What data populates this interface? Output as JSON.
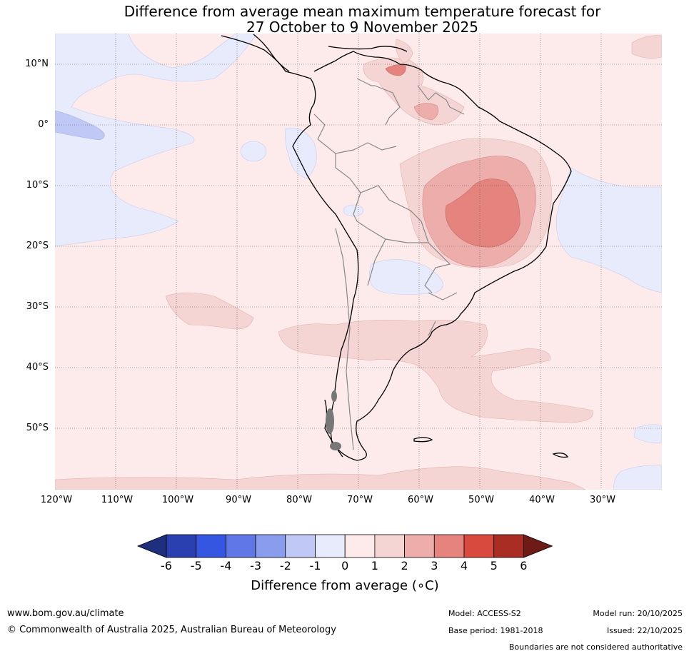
{
  "title": {
    "line1": "Difference from average mean maximum temperature forecast for",
    "line2": "27 October to 9 November 2025"
  },
  "map": {
    "region": "South America",
    "lat_labels": [
      "10°N",
      "0°",
      "10°S",
      "20°S",
      "30°S",
      "40°S",
      "50°S"
    ],
    "lat_values": [
      10,
      0,
      -10,
      -20,
      -30,
      -40,
      -50
    ],
    "lon_labels": [
      "120°W",
      "110°W",
      "100°W",
      "90°W",
      "80°W",
      "70°W",
      "60°W",
      "50°W",
      "40°W",
      "30°W"
    ],
    "lon_values": [
      -120,
      -110,
      -100,
      -90,
      -80,
      -70,
      -60,
      -50,
      -40,
      -30
    ],
    "extent": {
      "lon_min": -120,
      "lon_max": -20,
      "lat_min": -60,
      "lat_max": 15
    },
    "anomaly_regions": [
      {
        "name": "central-brazil-warm-core",
        "anomaly_range": "3 to 4"
      },
      {
        "name": "central-brazil-warm-ring",
        "anomaly_range": "2 to 3"
      },
      {
        "name": "venezuela-warm",
        "anomaly_range": "1 to 3"
      },
      {
        "name": "south-atlantic-warm",
        "anomaly_range": "1 to 2"
      },
      {
        "name": "eastern-pacific-cool",
        "anomaly_range": "-2 to -1"
      },
      {
        "name": "background",
        "anomaly_range": "0 to 1"
      }
    ]
  },
  "colorbar": {
    "ticks": [
      "-6",
      "-5",
      "-4",
      "-3",
      "-2",
      "-1",
      "0",
      "1",
      "2",
      "3",
      "4",
      "5",
      "6"
    ],
    "colors": [
      "#1f2f7d",
      "#2a40b0",
      "#3456e0",
      "#5f78e5",
      "#8a9ced",
      "#c0c8f5",
      "#e8ebfb",
      "#fcebea",
      "#f5d5d3",
      "#edaeab",
      "#e5847f",
      "#d94a3e",
      "#a92d22",
      "#6e1a16"
    ],
    "label": "Difference from average (∘C)"
  },
  "footer": {
    "url": "www.bom.gov.au/climate",
    "copyright": "© Commonwealth of Australia 2025, Australian Bureau of Meteorology",
    "model": "Model: ACCESS-S2",
    "base_period": "Base period: 1981-2018",
    "model_run": "Model run: 20/10/2025",
    "issued": "Issued: 22/10/2025",
    "boundaries_note": "Boundaries are not considered authoritative"
  }
}
